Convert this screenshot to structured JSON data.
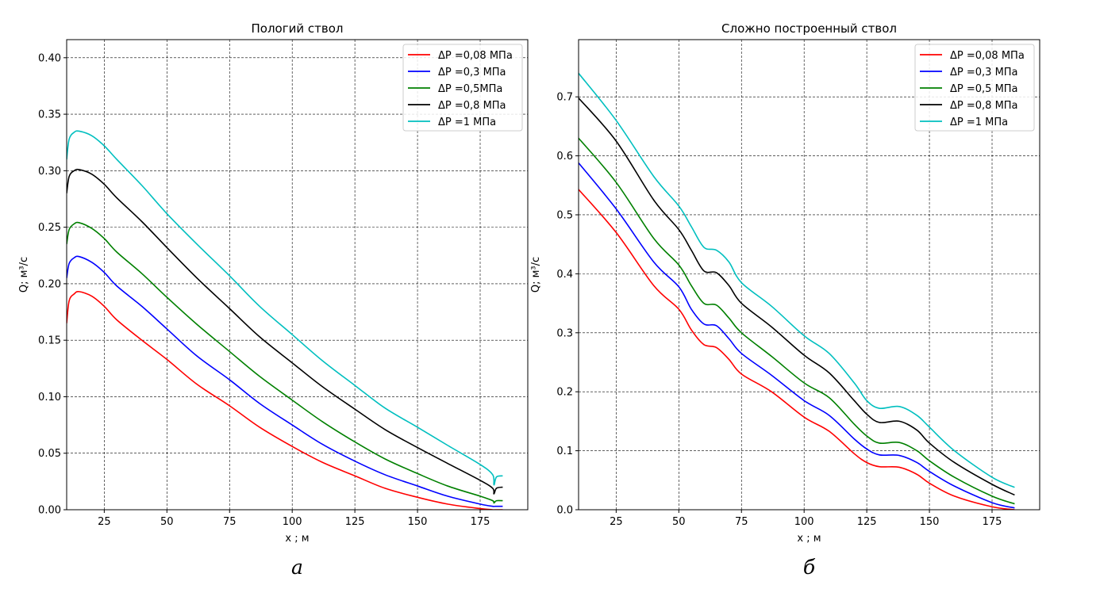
{
  "chart_data": [
    {
      "type": "line",
      "title": "Пологий ствол",
      "xlabel": "x ; м",
      "ylabel": "Q; м³/с",
      "subfigure_label": "а",
      "xlim": [
        10,
        194
      ],
      "ylim": [
        0,
        0.416
      ],
      "xticks": [
        25,
        50,
        75,
        100,
        125,
        150,
        175
      ],
      "xtick_labels": [
        "25",
        "50",
        "75",
        "100",
        "125",
        "150",
        "175"
      ],
      "yticks": [
        0,
        0.05,
        0.1,
        0.15,
        0.2,
        0.25,
        0.3,
        0.35,
        0.4
      ],
      "ytick_labels": [
        "0.00",
        "0.05",
        "0.10",
        "0.15",
        "0.20",
        "0.25",
        "0.30",
        "0.35",
        "0.40"
      ],
      "grid": true,
      "legend_position": "top-right",
      "series": [
        {
          "name": "ΔP =0,08 МПа",
          "color": "#ff0000",
          "x": [
            10,
            11,
            13,
            15,
            20,
            25,
            30,
            40,
            50,
            62,
            75,
            87,
            100,
            112,
            125,
            137,
            150,
            162,
            175,
            180,
            181,
            184
          ],
          "y": [
            0.165,
            0.185,
            0.191,
            0.193,
            0.189,
            0.18,
            0.168,
            0.15,
            0.133,
            0.111,
            0.092,
            0.073,
            0.056,
            0.042,
            0.03,
            0.019,
            0.011,
            0.005,
            0.001,
            0.0,
            0.0,
            0.0
          ]
        },
        {
          "name": "ΔP =0,3 МПа",
          "color": "#0000ff",
          "x": [
            10,
            11,
            13,
            15,
            20,
            25,
            30,
            40,
            50,
            62,
            75,
            87,
            100,
            112,
            125,
            137,
            150,
            162,
            175,
            180,
            181,
            184
          ],
          "y": [
            0.205,
            0.218,
            0.223,
            0.224,
            0.219,
            0.21,
            0.198,
            0.18,
            0.16,
            0.136,
            0.115,
            0.094,
            0.075,
            0.058,
            0.043,
            0.031,
            0.021,
            0.012,
            0.005,
            0.003,
            0.003,
            0.003
          ]
        },
        {
          "name": "ΔP =0,5МПа",
          "color": "#008000",
          "x": [
            10,
            11,
            13,
            15,
            20,
            25,
            30,
            40,
            50,
            62,
            75,
            87,
            100,
            112,
            125,
            137,
            150,
            162,
            175,
            180,
            180.5,
            181.5,
            184
          ],
          "y": [
            0.235,
            0.248,
            0.253,
            0.254,
            0.249,
            0.24,
            0.228,
            0.209,
            0.188,
            0.164,
            0.14,
            0.118,
            0.097,
            0.078,
            0.06,
            0.045,
            0.032,
            0.021,
            0.012,
            0.008,
            0.006,
            0.008,
            0.008
          ]
        },
        {
          "name": "ΔP =0,8 МПа",
          "color": "#000000",
          "x": [
            10,
            11,
            13,
            15,
            20,
            25,
            30,
            40,
            50,
            62,
            75,
            87,
            100,
            112,
            125,
            137,
            150,
            162,
            175,
            180,
            180.5,
            181.5,
            184
          ],
          "y": [
            0.28,
            0.295,
            0.3,
            0.301,
            0.297,
            0.288,
            0.276,
            0.255,
            0.232,
            0.205,
            0.178,
            0.153,
            0.13,
            0.109,
            0.089,
            0.071,
            0.055,
            0.041,
            0.026,
            0.019,
            0.014,
            0.019,
            0.02
          ]
        },
        {
          "name": "ΔP =1 МПа",
          "color": "#00bfbf",
          "x": [
            10,
            11,
            13,
            15,
            20,
            25,
            30,
            40,
            50,
            62,
            75,
            87,
            100,
            112,
            125,
            137,
            150,
            162,
            175,
            180,
            180.5,
            181.5,
            184
          ],
          "y": [
            0.31,
            0.328,
            0.334,
            0.335,
            0.331,
            0.322,
            0.31,
            0.287,
            0.262,
            0.235,
            0.207,
            0.18,
            0.155,
            0.132,
            0.11,
            0.09,
            0.073,
            0.057,
            0.04,
            0.031,
            0.022,
            0.029,
            0.03
          ]
        }
      ]
    },
    {
      "type": "line",
      "title": "Сложно построенный ствол",
      "xlabel": "x ; м",
      "ylabel": "Q; м³/с",
      "subfigure_label": "б",
      "xlim": [
        10,
        194
      ],
      "ylim": [
        0,
        0.797
      ],
      "xticks": [
        25,
        50,
        75,
        100,
        125,
        150,
        175
      ],
      "xtick_labels": [
        "25",
        "50",
        "75",
        "100",
        "125",
        "150",
        "175"
      ],
      "yticks": [
        0,
        0.1,
        0.2,
        0.3,
        0.4,
        0.5,
        0.6,
        0.7
      ],
      "ytick_labels": [
        "0.0",
        "0.1",
        "0.2",
        "0.3",
        "0.4",
        "0.5",
        "0.6",
        "0.7"
      ],
      "grid": true,
      "legend_position": "top-right",
      "series": [
        {
          "name": "ΔP =0,08 МПа",
          "color": "#ff0000",
          "x": [
            10,
            25,
            40,
            50,
            55,
            60,
            65,
            70,
            75,
            87,
            100,
            110,
            120,
            125,
            130,
            138,
            145,
            150,
            160,
            175,
            184
          ],
          "y": [
            0.543,
            0.47,
            0.38,
            0.34,
            0.305,
            0.28,
            0.275,
            0.255,
            0.23,
            0.2,
            0.157,
            0.133,
            0.095,
            0.08,
            0.073,
            0.072,
            0.06,
            0.045,
            0.023,
            0.005,
            0.0
          ]
        },
        {
          "name": "ΔP =0,3 МПа",
          "color": "#0000ff",
          "x": [
            10,
            25,
            40,
            50,
            55,
            60,
            65,
            70,
            75,
            87,
            100,
            110,
            120,
            125,
            130,
            138,
            145,
            150,
            160,
            175,
            184
          ],
          "y": [
            0.588,
            0.51,
            0.42,
            0.378,
            0.34,
            0.315,
            0.312,
            0.29,
            0.265,
            0.228,
            0.185,
            0.16,
            0.12,
            0.103,
            0.093,
            0.092,
            0.08,
            0.065,
            0.04,
            0.012,
            0.003
          ]
        },
        {
          "name": "ΔP =0,5 МПа",
          "color": "#008000",
          "x": [
            10,
            25,
            40,
            50,
            55,
            60,
            65,
            70,
            75,
            87,
            100,
            110,
            120,
            125,
            130,
            138,
            145,
            150,
            160,
            175,
            184
          ],
          "y": [
            0.63,
            0.555,
            0.46,
            0.415,
            0.38,
            0.35,
            0.347,
            0.325,
            0.3,
            0.26,
            0.215,
            0.19,
            0.145,
            0.125,
            0.113,
            0.114,
            0.1,
            0.083,
            0.055,
            0.023,
            0.01
          ]
        },
        {
          "name": "ΔP =0,8 МПа",
          "color": "#000000",
          "x": [
            10,
            25,
            40,
            50,
            55,
            60,
            65,
            70,
            75,
            87,
            100,
            110,
            120,
            125,
            130,
            138,
            145,
            150,
            160,
            175,
            184
          ],
          "y": [
            0.698,
            0.625,
            0.525,
            0.475,
            0.44,
            0.405,
            0.402,
            0.38,
            0.35,
            0.31,
            0.262,
            0.232,
            0.185,
            0.162,
            0.148,
            0.15,
            0.135,
            0.113,
            0.08,
            0.043,
            0.025
          ]
        },
        {
          "name": "ΔP =1 МПа",
          "color": "#00bfbf",
          "x": [
            10,
            25,
            40,
            50,
            55,
            60,
            65,
            70,
            75,
            87,
            100,
            110,
            120,
            125,
            130,
            138,
            145,
            150,
            160,
            175,
            184
          ],
          "y": [
            0.74,
            0.66,
            0.565,
            0.515,
            0.48,
            0.445,
            0.44,
            0.42,
            0.385,
            0.345,
            0.295,
            0.265,
            0.215,
            0.185,
            0.172,
            0.175,
            0.16,
            0.14,
            0.1,
            0.055,
            0.038
          ]
        }
      ]
    }
  ]
}
